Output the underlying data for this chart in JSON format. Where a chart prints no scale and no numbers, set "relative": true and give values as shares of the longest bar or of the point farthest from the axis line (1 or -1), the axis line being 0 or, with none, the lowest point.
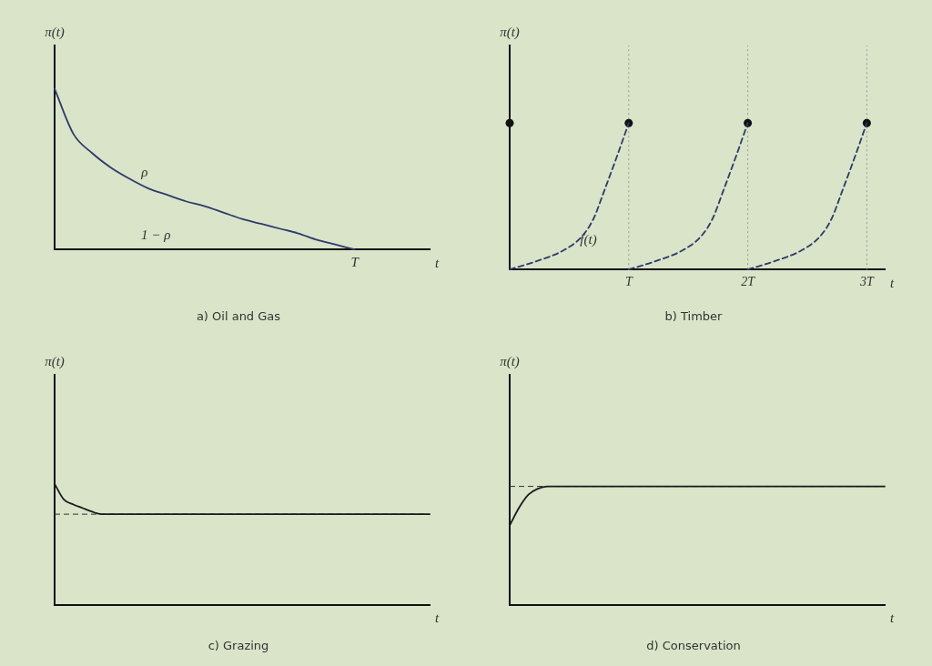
{
  "chart_data": [
    {
      "type": "line",
      "title": "a) Oil and Gas",
      "xlabel": "t",
      "ylabel": "π(t)",
      "relative": true,
      "tick_labels": "x",
      "categories": [
        null,
        null,
        null,
        null,
        null,
        null,
        null,
        null,
        null,
        null,
        null,
        null,
        null,
        null,
        null,
        null,
        null,
        null,
        null,
        null,
        null
      ],
      "series": [
        {
          "color": "#2e3a6b",
          "values": [
            1,
            0.72,
            0.6,
            0.51,
            0.44,
            0.38,
            0.34,
            0.3,
            0.27,
            0.23,
            0.19,
            0.16,
            0.13,
            0.1,
            0.06,
            0.03,
            0,
            null,
            null,
            null,
            null
          ]
        }
      ],
      "annotations": [
        "ρ",
        "1 − ρ",
        "T"
      ]
    },
    {
      "type": "line",
      "title": "b) Timber",
      "xlabel": "t",
      "ylabel": "π(t)",
      "relative": true,
      "tick_labels": "x",
      "xlim": [
        0,
        3.15
      ],
      "xticks": [
        {
          "value": 1,
          "label": "T"
        },
        {
          "value": 2,
          "label": "2T"
        },
        {
          "value": 3,
          "label": "3T"
        }
      ],
      "series": [
        {
          "color": "#2e3a6b",
          "line_style": "dashed",
          "x": [
            0,
            0.2,
            0.45,
            0.6,
            0.7,
            0.8,
            0.9,
            1
          ],
          "values": [
            0,
            0.05,
            0.13,
            0.22,
            0.34,
            0.55,
            0.77,
            1
          ]
        },
        {
          "color": "#2e3a6b",
          "line_style": "dashed",
          "x": [
            1,
            1.2,
            1.45,
            1.6,
            1.7,
            1.8,
            1.9,
            2
          ],
          "values": [
            0,
            0.05,
            0.13,
            0.22,
            0.34,
            0.55,
            0.77,
            1
          ]
        },
        {
          "color": "#2e3a6b",
          "line_style": "dashed",
          "x": [
            2,
            2.2,
            2.45,
            2.6,
            2.7,
            2.8,
            2.9,
            3
          ],
          "values": [
            0,
            0.05,
            0.13,
            0.22,
            0.34,
            0.55,
            0.77,
            1
          ]
        },
        {
          "type": "scatter",
          "color": "#111111",
          "marker": "circle",
          "x": [
            0,
            1,
            2,
            3
          ],
          "values": [
            1,
            1,
            1,
            1
          ]
        }
      ],
      "ref_lines": [
        {
          "axis": "x",
          "value": 1,
          "color": "#9a9a9a",
          "line_style": "dotted"
        },
        {
          "axis": "x",
          "value": 2,
          "color": "#9a9a9a",
          "line_style": "dotted"
        },
        {
          "axis": "x",
          "value": 3,
          "color": "#9a9a9a",
          "line_style": "dotted"
        }
      ],
      "annotations": [
        "f(t)"
      ]
    },
    {
      "type": "line",
      "title": "c) Grazing",
      "xlabel": "t",
      "ylabel": "π(t)",
      "relative": true,
      "tick_labels": false,
      "categories": [
        null,
        null,
        null,
        null,
        null,
        null,
        null,
        null,
        null,
        null,
        null,
        null,
        null,
        null,
        null,
        null,
        null,
        null,
        null,
        null,
        null,
        null,
        null,
        null,
        null,
        null,
        null,
        null,
        null,
        null,
        null,
        null,
        null,
        null,
        null,
        null,
        null,
        null,
        null,
        null,
        null
      ],
      "series": [
        {
          "color": "#1a1a1a",
          "values": [
            1,
            0.87,
            0.83,
            0.8,
            0.77,
            0.75,
            0.75,
            0.75,
            0.75,
            0.75,
            0.75,
            0.75,
            0.75,
            0.75,
            0.75,
            0.75,
            0.75,
            0.75,
            0.75,
            0.75,
            0.75,
            0.75,
            0.75,
            0.75,
            0.75,
            0.75,
            0.75,
            0.75,
            0.75,
            0.75,
            0.75,
            0.75,
            0.75,
            0.75,
            0.75,
            0.75,
            0.75,
            0.75,
            0.75,
            0.75,
            0.75
          ]
        }
      ],
      "ref_lines": [
        {
          "axis": "y",
          "value": 0.75,
          "color": "#333333",
          "line_style": "dashed"
        }
      ]
    },
    {
      "type": "line",
      "title": "d) Conservation",
      "xlabel": "t",
      "ylabel": "π(t)",
      "relative": true,
      "tick_labels": false,
      "categories": [
        null,
        null,
        null,
        null,
        null,
        null,
        null,
        null,
        null,
        null,
        null,
        null,
        null,
        null,
        null,
        null,
        null,
        null,
        null,
        null,
        null,
        null,
        null,
        null,
        null,
        null,
        null,
        null,
        null,
        null,
        null,
        null,
        null,
        null,
        null,
        null,
        null,
        null,
        null,
        null,
        null
      ],
      "series": [
        {
          "color": "#1a1a1a",
          "values": [
            0.67,
            0.82,
            0.93,
            0.98,
            1,
            1,
            1,
            1,
            1,
            1,
            1,
            1,
            1,
            1,
            1,
            1,
            1,
            1,
            1,
            1,
            1,
            1,
            1,
            1,
            1,
            1,
            1,
            1,
            1,
            1,
            1,
            1,
            1,
            1,
            1,
            1,
            1,
            1,
            1,
            1,
            1
          ]
        }
      ],
      "ref_lines": [
        {
          "axis": "y",
          "value": 1,
          "color": "#333333",
          "line_style": "dashed"
        }
      ]
    }
  ]
}
